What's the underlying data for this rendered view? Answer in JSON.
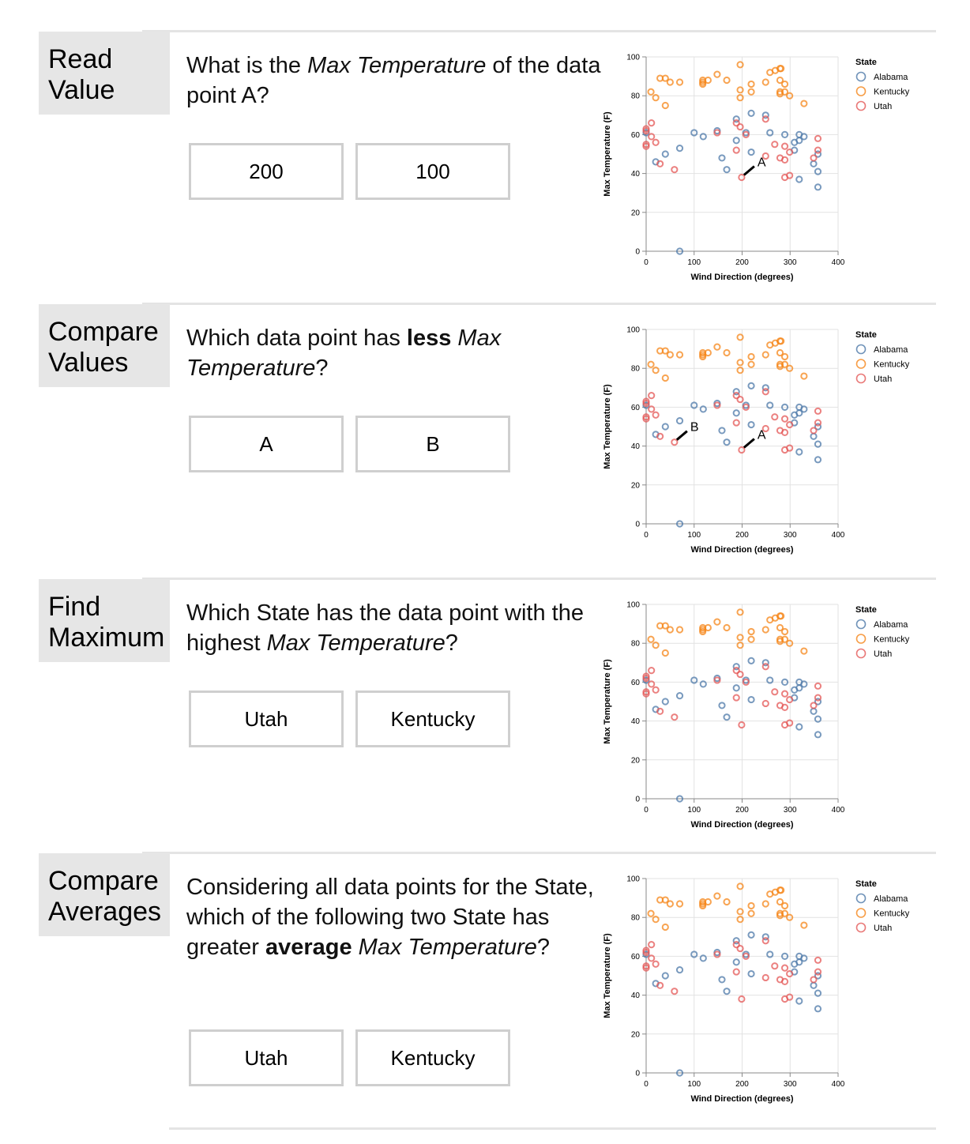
{
  "sections": [
    {
      "task": [
        "Read",
        "Value"
      ],
      "question": [
        {
          "t": "What is the ",
          "s": ""
        },
        {
          "t": "Max Temperature",
          "s": "i"
        },
        {
          "t": " of the data point A?",
          "s": ""
        }
      ],
      "options": [
        "200",
        "100"
      ]
    },
    {
      "task": [
        "Compare",
        "Values"
      ],
      "question": [
        {
          "t": "Which data point has ",
          "s": ""
        },
        {
          "t": "less",
          "s": "b"
        },
        {
          "t": " ",
          "s": ""
        },
        {
          "t": "Max Temperature",
          "s": "i"
        },
        {
          "t": "?",
          "s": ""
        }
      ],
      "options": [
        "A",
        "B"
      ]
    },
    {
      "task": [
        "Find",
        "Maximum"
      ],
      "question": [
        {
          "t": "Which State has the data point with the highest ",
          "s": ""
        },
        {
          "t": "Max Temperature",
          "s": "i"
        },
        {
          "t": "?",
          "s": ""
        }
      ],
      "options": [
        "Utah",
        "Kentucky"
      ]
    },
    {
      "task": [
        "Compare",
        "Averages"
      ],
      "question": [
        {
          "t": "Considering all data points for the State, which of the following two State has greater ",
          "s": ""
        },
        {
          "t": "average",
          "s": "b"
        },
        {
          "t": " ",
          "s": ""
        },
        {
          "t": "Max Temperature",
          "s": "i"
        },
        {
          "t": "?",
          "s": ""
        }
      ],
      "options": [
        "Utah",
        "Kentucky"
      ]
    }
  ],
  "chart_common": {
    "type": "scatter",
    "xlabel": "Wind Direction (degrees)",
    "ylabel": "Max Temperature (F)",
    "xlim": [
      0,
      400
    ],
    "ylim": [
      0,
      100
    ],
    "xticks": [
      0,
      100,
      200,
      300,
      400
    ],
    "yticks": [
      0,
      20,
      40,
      60,
      80,
      100
    ],
    "grid": true,
    "marker": "hollow-circle",
    "legend": {
      "title": "State",
      "placement": "right"
    },
    "series": [
      {
        "name": "Alabama",
        "color": "#4c78a8",
        "points": [
          [
            0,
            61
          ],
          [
            20,
            46
          ],
          [
            40,
            50
          ],
          [
            70,
            53
          ],
          [
            70,
            0
          ],
          [
            100,
            61
          ],
          [
            119,
            59
          ],
          [
            148,
            62
          ],
          [
            158,
            48
          ],
          [
            168,
            42
          ],
          [
            188,
            68
          ],
          [
            188,
            57
          ],
          [
            208,
            61
          ],
          [
            219,
            71
          ],
          [
            219,
            51
          ],
          [
            249,
            70
          ],
          [
            258,
            61
          ],
          [
            289,
            60
          ],
          [
            309,
            56
          ],
          [
            309,
            52
          ],
          [
            319,
            60
          ],
          [
            319,
            57
          ],
          [
            329,
            59
          ],
          [
            349,
            45
          ],
          [
            358,
            50
          ],
          [
            358,
            41
          ],
          [
            319,
            37
          ],
          [
            358,
            33
          ]
        ]
      },
      {
        "name": "Kentucky",
        "color": "#f58518",
        "points": [
          [
            10,
            82
          ],
          [
            20,
            79
          ],
          [
            29,
            89
          ],
          [
            40,
            89
          ],
          [
            50,
            87
          ],
          [
            70,
            87
          ],
          [
            40,
            75
          ],
          [
            118,
            88
          ],
          [
            118,
            87
          ],
          [
            118,
            86
          ],
          [
            129,
            88
          ],
          [
            148,
            91
          ],
          [
            168,
            88
          ],
          [
            196,
            96
          ],
          [
            196,
            83
          ],
          [
            196,
            79
          ],
          [
            219,
            86
          ],
          [
            219,
            82
          ],
          [
            249,
            87
          ],
          [
            258,
            92
          ],
          [
            269,
            93
          ],
          [
            279,
            94
          ],
          [
            281,
            94
          ],
          [
            279,
            88
          ],
          [
            289,
            86
          ],
          [
            279,
            82
          ],
          [
            279,
            81
          ],
          [
            289,
            82
          ],
          [
            299,
            80
          ],
          [
            329,
            76
          ]
        ]
      },
      {
        "name": "Utah",
        "color": "#e45756",
        "points": [
          [
            0,
            63
          ],
          [
            0,
            62
          ],
          [
            11,
            66
          ],
          [
            0,
            55
          ],
          [
            0,
            54
          ],
          [
            11,
            59
          ],
          [
            20,
            56
          ],
          [
            29,
            45
          ],
          [
            59,
            42
          ],
          [
            148,
            61
          ],
          [
            188,
            66
          ],
          [
            196,
            64
          ],
          [
            188,
            52
          ],
          [
            199,
            38
          ],
          [
            208,
            60
          ],
          [
            249,
            68
          ],
          [
            268,
            55
          ],
          [
            289,
            54
          ],
          [
            299,
            51
          ],
          [
            249,
            49
          ],
          [
            279,
            48
          ],
          [
            289,
            47
          ],
          [
            358,
            58
          ],
          [
            358,
            52
          ],
          [
            349,
            48
          ],
          [
            289,
            38
          ],
          [
            299,
            39
          ]
        ]
      }
    ]
  },
  "chart_data": [
    {
      "type": "scatter",
      "annotations": [
        {
          "label": "A",
          "x": 199,
          "y": 38
        }
      ]
    },
    {
      "type": "scatter",
      "annotations": [
        {
          "label": "A",
          "x": 199,
          "y": 38
        },
        {
          "label": "B",
          "x": 59,
          "y": 42
        }
      ]
    },
    {
      "type": "scatter",
      "annotations": []
    },
    {
      "type": "scatter",
      "annotations": []
    }
  ]
}
